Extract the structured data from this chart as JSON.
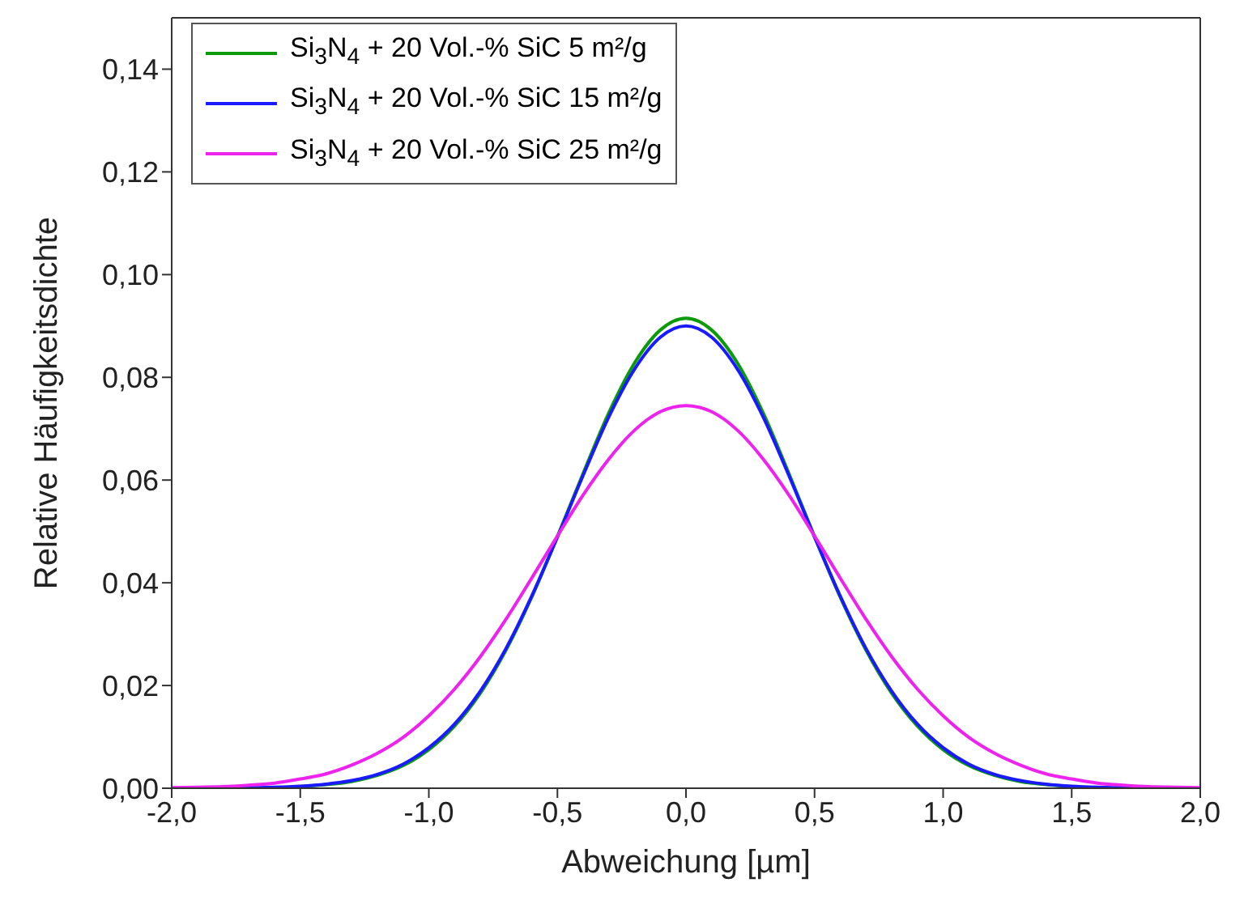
{
  "chart_data": {
    "type": "line",
    "xlabel": "Abweichung [µm]",
    "ylabel": "Relative Häufigkeitsdichte",
    "x": [
      -2.0,
      -1.9,
      -1.8,
      -1.7,
      -1.6,
      -1.5,
      -1.4,
      -1.3,
      -1.2,
      -1.1,
      -1.0,
      -0.9,
      -0.8,
      -0.7,
      -0.6,
      -0.5,
      -0.4,
      -0.3,
      -0.2,
      -0.1,
      0.0,
      0.1,
      0.2,
      0.3,
      0.4,
      0.5,
      0.6,
      0.7,
      0.8,
      0.9,
      1.0,
      1.1,
      1.2,
      1.3,
      1.4,
      1.5,
      1.6,
      1.7,
      1.8,
      1.9,
      2.0
    ],
    "series": [
      {
        "name": "Si$_{3}$N$_{4}$ + 20 Vol.-% SiC 5 m²/g",
        "color": "#0a9a0a",
        "values": [
          null,
          null,
          null,
          null,
          0.0001,
          0.0003,
          0.0007,
          0.0013,
          0.0025,
          0.0044,
          0.0075,
          0.0121,
          0.0185,
          0.0269,
          0.0372,
          0.049,
          0.0613,
          0.0731,
          0.0828,
          0.0892,
          0.0915,
          0.0892,
          0.0828,
          0.0731,
          0.0613,
          0.049,
          0.0372,
          0.0269,
          0.0185,
          0.0121,
          0.0075,
          0.0044,
          0.0025,
          0.0013,
          0.0007,
          0.0003,
          0.0001,
          null,
          null,
          null,
          null
        ]
      },
      {
        "name": "Si$_{3}$N$_{4}$ + 20 Vol.-% SiC 15 m²/g",
        "color": "#1a1aff",
        "values": [
          null,
          null,
          0,
          0.0001,
          0.0002,
          0.0004,
          0.0008,
          0.0015,
          0.0027,
          0.0047,
          0.0079,
          0.0125,
          0.0189,
          0.0272,
          0.0374,
          0.0489,
          0.0609,
          0.0723,
          0.0816,
          0.0878,
          0.09,
          0.0878,
          0.0816,
          0.0723,
          0.0609,
          0.0489,
          0.0374,
          0.0272,
          0.0189,
          0.0125,
          0.0079,
          0.0047,
          0.0027,
          0.0015,
          0.0008,
          0.0004,
          0.0002,
          0.0001,
          0,
          null,
          null
        ]
      },
      {
        "name": "Si$_{3}$N$_{4}$ + 20 Vol.-% SiC 25 m²/g",
        "color": "#ee22ee",
        "values": [
          0.0001,
          0.0002,
          0.0003,
          0.0006,
          0.001,
          0.0018,
          0.0028,
          0.0045,
          0.0068,
          0.0099,
          0.0141,
          0.0193,
          0.0256,
          0.0329,
          0.0409,
          0.0491,
          0.0571,
          0.0641,
          0.0697,
          0.0733,
          0.0745,
          0.0733,
          0.0697,
          0.0641,
          0.0571,
          0.0491,
          0.0409,
          0.0329,
          0.0256,
          0.0193,
          0.0141,
          0.0099,
          0.0068,
          0.0045,
          0.0028,
          0.0018,
          0.001,
          0.0006,
          0.0003,
          0.0002,
          0.0001
        ]
      }
    ],
    "xlim": [
      -2.0,
      2.0
    ],
    "xticks": [
      {
        "value": -2.0,
        "label": "-2,0"
      },
      {
        "value": -1.5,
        "label": "-1,5"
      },
      {
        "value": -1.0,
        "label": "-1,0"
      },
      {
        "value": -0.5,
        "label": "-0,5"
      },
      {
        "value": 0.0,
        "label": "0,0"
      },
      {
        "value": 0.5,
        "label": "0,5"
      },
      {
        "value": 1.0,
        "label": "1,0"
      },
      {
        "value": 1.5,
        "label": "1,5"
      },
      {
        "value": 2.0,
        "label": "2,0"
      }
    ],
    "ylim": [
      0,
      0.15
    ],
    "yticks": [
      {
        "value": 0,
        "label": "0,00"
      },
      {
        "value": 0.02,
        "label": "0,02"
      },
      {
        "value": 0.04,
        "label": "0,04"
      },
      {
        "value": 0.06,
        "label": "0,06"
      },
      {
        "value": 0.08,
        "label": "0,08"
      },
      {
        "value": 0.1,
        "label": "0,10"
      },
      {
        "value": 0.12,
        "label": "0,12"
      },
      {
        "value": 0.14,
        "label": "0,14"
      }
    ],
    "grid": false,
    "legend": "top left",
    "marker": "none",
    "line_style": "solid"
  }
}
